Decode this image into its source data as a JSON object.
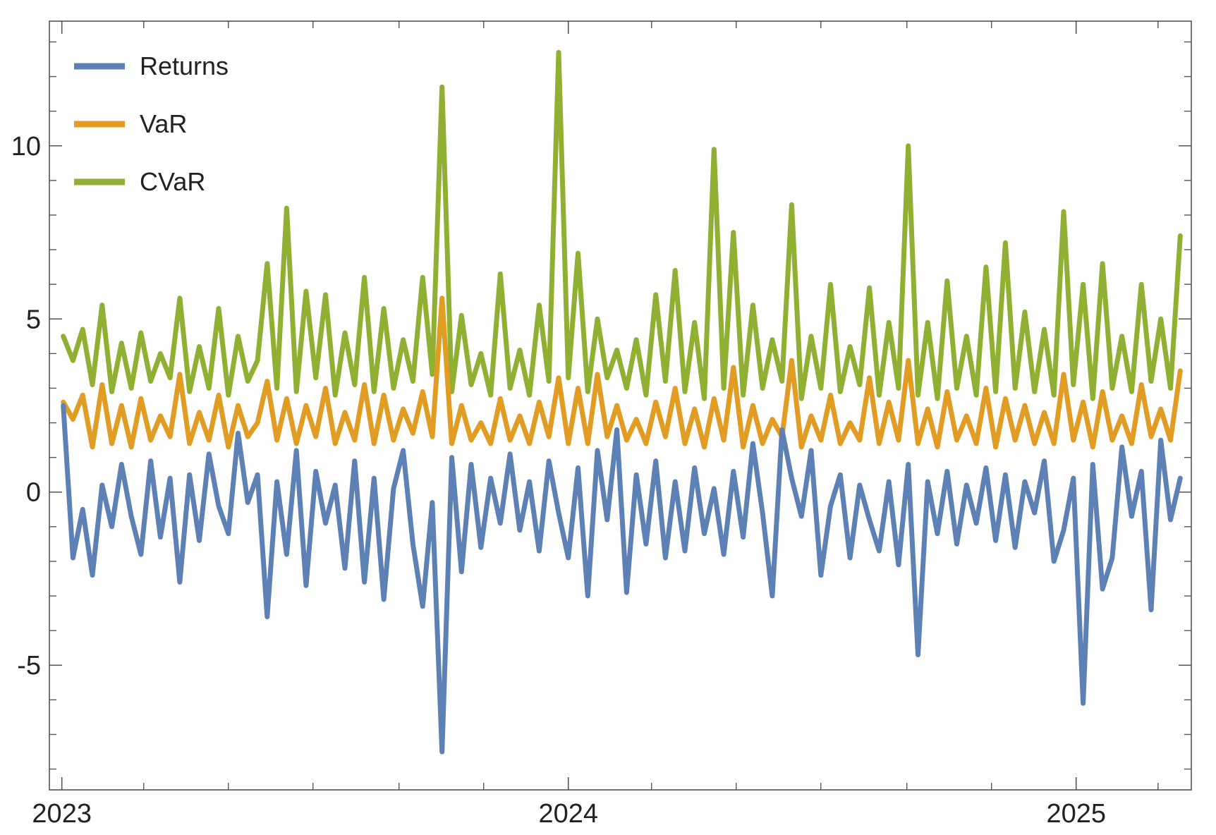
{
  "chart_data": {
    "type": "line",
    "title": "",
    "xlabel": "",
    "ylabel": "",
    "xlim": [
      "2022-12-23",
      "2025-03-25"
    ],
    "ylim": [
      -8.6,
      13.6
    ],
    "x_ticks": [
      {
        "value": "2023-01-01",
        "label": "2023"
      },
      {
        "value": "2024-01-01",
        "label": "2024"
      },
      {
        "value": "2025-01-01",
        "label": "2025"
      }
    ],
    "x_minor_ticks": [
      "2023-03-01",
      "2023-05-01",
      "2023-07-01",
      "2023-09-01",
      "2023-11-01",
      "2024-03-01",
      "2024-05-01",
      "2024-07-01",
      "2024-09-01",
      "2024-11-01",
      "2025-03-01"
    ],
    "y_ticks": [
      {
        "value": -5,
        "label": "-5"
      },
      {
        "value": 0,
        "label": "0"
      },
      {
        "value": 5,
        "label": "5"
      },
      {
        "value": 10,
        "label": "10"
      }
    ],
    "grid": false,
    "legend_position": "top-left",
    "series": [
      {
        "name": "Returns",
        "color": "#5e81b5",
        "x": [
          "2023-01-02",
          "2023-01-09",
          "2023-01-16",
          "2023-01-23",
          "2023-01-30",
          "2023-02-06",
          "2023-02-13",
          "2023-02-20",
          "2023-02-27",
          "2023-03-06",
          "2023-03-13",
          "2023-03-20",
          "2023-03-27",
          "2023-04-03",
          "2023-04-10",
          "2023-04-17",
          "2023-04-24",
          "2023-05-01",
          "2023-05-08",
          "2023-05-15",
          "2023-05-22",
          "2023-05-29",
          "2023-06-05",
          "2023-06-12",
          "2023-06-19",
          "2023-06-26",
          "2023-07-03",
          "2023-07-10",
          "2023-07-17",
          "2023-07-24",
          "2023-07-31",
          "2023-08-07",
          "2023-08-14",
          "2023-08-21",
          "2023-08-28",
          "2023-09-04",
          "2023-09-11",
          "2023-09-18",
          "2023-09-25",
          "2023-10-02",
          "2023-10-09",
          "2023-10-16",
          "2023-10-23",
          "2023-10-30",
          "2023-11-06",
          "2023-11-13",
          "2023-11-20",
          "2023-11-27",
          "2023-12-04",
          "2023-12-11",
          "2023-12-18",
          "2023-12-25",
          "2024-01-01",
          "2024-01-08",
          "2024-01-15",
          "2024-01-22",
          "2024-01-29",
          "2024-02-05",
          "2024-02-12",
          "2024-02-19",
          "2024-02-26",
          "2024-03-04",
          "2024-03-11",
          "2024-03-18",
          "2024-03-25",
          "2024-04-01",
          "2024-04-08",
          "2024-04-15",
          "2024-04-22",
          "2024-04-29",
          "2024-05-06",
          "2024-05-13",
          "2024-05-20",
          "2024-05-27",
          "2024-06-03",
          "2024-06-10",
          "2024-06-17",
          "2024-06-24",
          "2024-07-01",
          "2024-07-08",
          "2024-07-15",
          "2024-07-22",
          "2024-07-29",
          "2024-08-05",
          "2024-08-12",
          "2024-08-19",
          "2024-08-26",
          "2024-09-02",
          "2024-09-09",
          "2024-09-16",
          "2024-09-23",
          "2024-09-30",
          "2024-10-07",
          "2024-10-14",
          "2024-10-21",
          "2024-10-28",
          "2024-11-04",
          "2024-11-11",
          "2024-11-18",
          "2024-11-25",
          "2024-12-02",
          "2024-12-09",
          "2024-12-16",
          "2024-12-23",
          "2024-12-30",
          "2025-01-06",
          "2025-01-13",
          "2025-01-20",
          "2025-01-27",
          "2025-02-03",
          "2025-02-10",
          "2025-02-17",
          "2025-02-24",
          "2025-03-03",
          "2025-03-10",
          "2025-03-17"
        ],
        "y": [
          2.5,
          -1.9,
          -0.5,
          -2.4,
          0.2,
          -1.0,
          0.8,
          -0.7,
          -1.8,
          0.9,
          -1.3,
          0.4,
          -2.6,
          0.5,
          -1.4,
          1.1,
          -0.4,
          -1.2,
          1.7,
          -0.3,
          0.5,
          -3.6,
          0.3,
          -1.8,
          1.2,
          -2.7,
          0.6,
          -0.9,
          0.2,
          -2.2,
          0.9,
          -2.6,
          0.4,
          -3.1,
          0.1,
          1.2,
          -1.5,
          -3.3,
          -0.3,
          -7.5,
          1.0,
          -2.3,
          0.8,
          -1.6,
          0.4,
          -0.9,
          1.1,
          -1.1,
          0.3,
          -1.7,
          0.9,
          -0.6,
          -1.9,
          0.7,
          -3.0,
          1.2,
          -0.8,
          1.8,
          -2.9,
          0.5,
          -1.5,
          0.9,
          -1.9,
          0.3,
          -1.7,
          0.7,
          -1.2,
          0.1,
          -1.8,
          0.6,
          -1.3,
          1.4,
          -0.6,
          -3.0,
          1.8,
          0.4,
          -0.7,
          1.2,
          -2.4,
          -0.4,
          0.5,
          -1.9,
          0.2,
          -0.8,
          -1.7,
          0.3,
          -2.1,
          0.8,
          -4.7,
          0.3,
          -1.2,
          0.6,
          -1.5,
          0.2,
          -0.9,
          0.7,
          -1.4,
          0.5,
          -1.6,
          0.3,
          -0.6,
          0.9,
          -2.0,
          -1.1,
          0.4,
          -6.1,
          0.8,
          -2.8,
          -1.9,
          1.3,
          -0.7,
          0.6,
          -3.4,
          1.5,
          -0.8,
          0.4
        ]
      },
      {
        "name": "VaR",
        "color": "#e19c24",
        "x": [
          "2023-01-02",
          "2023-01-09",
          "2023-01-16",
          "2023-01-23",
          "2023-01-30",
          "2023-02-06",
          "2023-02-13",
          "2023-02-20",
          "2023-02-27",
          "2023-03-06",
          "2023-03-13",
          "2023-03-20",
          "2023-03-27",
          "2023-04-03",
          "2023-04-10",
          "2023-04-17",
          "2023-04-24",
          "2023-05-01",
          "2023-05-08",
          "2023-05-15",
          "2023-05-22",
          "2023-05-29",
          "2023-06-05",
          "2023-06-12",
          "2023-06-19",
          "2023-06-26",
          "2023-07-03",
          "2023-07-10",
          "2023-07-17",
          "2023-07-24",
          "2023-07-31",
          "2023-08-07",
          "2023-08-14",
          "2023-08-21",
          "2023-08-28",
          "2023-09-04",
          "2023-09-11",
          "2023-09-18",
          "2023-09-25",
          "2023-10-02",
          "2023-10-09",
          "2023-10-16",
          "2023-10-23",
          "2023-10-30",
          "2023-11-06",
          "2023-11-13",
          "2023-11-20",
          "2023-11-27",
          "2023-12-04",
          "2023-12-11",
          "2023-12-18",
          "2023-12-25",
          "2024-01-01",
          "2024-01-08",
          "2024-01-15",
          "2024-01-22",
          "2024-01-29",
          "2024-02-05",
          "2024-02-12",
          "2024-02-19",
          "2024-02-26",
          "2024-03-04",
          "2024-03-11",
          "2024-03-18",
          "2024-03-25",
          "2024-04-01",
          "2024-04-08",
          "2024-04-15",
          "2024-04-22",
          "2024-04-29",
          "2024-05-06",
          "2024-05-13",
          "2024-05-20",
          "2024-05-27",
          "2024-06-03",
          "2024-06-10",
          "2024-06-17",
          "2024-06-24",
          "2024-07-01",
          "2024-07-08",
          "2024-07-15",
          "2024-07-22",
          "2024-07-29",
          "2024-08-05",
          "2024-08-12",
          "2024-08-19",
          "2024-08-26",
          "2024-09-02",
          "2024-09-09",
          "2024-09-16",
          "2024-09-23",
          "2024-09-30",
          "2024-10-07",
          "2024-10-14",
          "2024-10-21",
          "2024-10-28",
          "2024-11-04",
          "2024-11-11",
          "2024-11-18",
          "2024-11-25",
          "2024-12-02",
          "2024-12-09",
          "2024-12-16",
          "2024-12-23",
          "2024-12-30",
          "2025-01-06",
          "2025-01-13",
          "2025-01-20",
          "2025-01-27",
          "2025-02-03",
          "2025-02-10",
          "2025-02-17",
          "2025-02-24",
          "2025-03-03",
          "2025-03-10",
          "2025-03-17"
        ],
        "y": [
          2.6,
          2.1,
          2.8,
          1.3,
          3.1,
          1.4,
          2.5,
          1.3,
          2.7,
          1.5,
          2.2,
          1.6,
          3.4,
          1.4,
          2.3,
          1.5,
          2.8,
          1.3,
          2.5,
          1.6,
          2.0,
          3.2,
          1.5,
          2.7,
          1.4,
          2.5,
          1.6,
          3.0,
          1.4,
          2.3,
          1.5,
          3.1,
          1.4,
          2.8,
          1.5,
          2.4,
          1.7,
          2.9,
          1.6,
          5.6,
          1.4,
          2.5,
          1.5,
          2.0,
          1.4,
          2.7,
          1.5,
          2.2,
          1.4,
          2.6,
          1.6,
          3.3,
          1.4,
          3.0,
          1.4,
          3.4,
          1.6,
          2.5,
          1.5,
          2.1,
          1.4,
          2.6,
          1.6,
          3.0,
          1.4,
          2.4,
          1.3,
          2.7,
          1.5,
          3.6,
          1.3,
          2.5,
          1.4,
          2.1,
          1.6,
          3.8,
          1.3,
          2.2,
          1.5,
          2.8,
          1.4,
          2.0,
          1.5,
          3.3,
          1.4,
          2.6,
          1.5,
          3.8,
          1.4,
          2.4,
          1.3,
          2.9,
          1.5,
          2.2,
          1.4,
          3.0,
          1.3,
          2.7,
          1.5,
          2.5,
          1.4,
          2.3,
          1.4,
          3.4,
          1.5,
          2.6,
          1.3,
          2.9,
          1.5,
          2.2,
          1.4,
          3.1,
          1.6,
          2.4,
          1.5,
          3.5
        ]
      },
      {
        "name": "CVaR",
        "color": "#8fb032",
        "x": [
          "2023-01-02",
          "2023-01-09",
          "2023-01-16",
          "2023-01-23",
          "2023-01-30",
          "2023-02-06",
          "2023-02-13",
          "2023-02-20",
          "2023-02-27",
          "2023-03-06",
          "2023-03-13",
          "2023-03-20",
          "2023-03-27",
          "2023-04-03",
          "2023-04-10",
          "2023-04-17",
          "2023-04-24",
          "2023-05-01",
          "2023-05-08",
          "2023-05-15",
          "2023-05-22",
          "2023-05-29",
          "2023-06-05",
          "2023-06-12",
          "2023-06-19",
          "2023-06-26",
          "2023-07-03",
          "2023-07-10",
          "2023-07-17",
          "2023-07-24",
          "2023-07-31",
          "2023-08-07",
          "2023-08-14",
          "2023-08-21",
          "2023-08-28",
          "2023-09-04",
          "2023-09-11",
          "2023-09-18",
          "2023-09-25",
          "2023-10-02",
          "2023-10-09",
          "2023-10-16",
          "2023-10-23",
          "2023-10-30",
          "2023-11-06",
          "2023-11-13",
          "2023-11-20",
          "2023-11-27",
          "2023-12-04",
          "2023-12-11",
          "2023-12-18",
          "2023-12-25",
          "2024-01-01",
          "2024-01-08",
          "2024-01-15",
          "2024-01-22",
          "2024-01-29",
          "2024-02-05",
          "2024-02-12",
          "2024-02-19",
          "2024-02-26",
          "2024-03-04",
          "2024-03-11",
          "2024-03-18",
          "2024-03-25",
          "2024-04-01",
          "2024-04-08",
          "2024-04-15",
          "2024-04-22",
          "2024-04-29",
          "2024-05-06",
          "2024-05-13",
          "2024-05-20",
          "2024-05-27",
          "2024-06-03",
          "2024-06-10",
          "2024-06-17",
          "2024-06-24",
          "2024-07-01",
          "2024-07-08",
          "2024-07-15",
          "2024-07-22",
          "2024-07-29",
          "2024-08-05",
          "2024-08-12",
          "2024-08-19",
          "2024-08-26",
          "2024-09-02",
          "2024-09-09",
          "2024-09-16",
          "2024-09-23",
          "2024-09-30",
          "2024-10-07",
          "2024-10-14",
          "2024-10-21",
          "2024-10-28",
          "2024-11-04",
          "2024-11-11",
          "2024-11-18",
          "2024-11-25",
          "2024-12-02",
          "2024-12-09",
          "2024-12-16",
          "2024-12-23",
          "2024-12-30",
          "2025-01-06",
          "2025-01-13",
          "2025-01-20",
          "2025-01-27",
          "2025-02-03",
          "2025-02-10",
          "2025-02-17",
          "2025-02-24",
          "2025-03-03",
          "2025-03-10",
          "2025-03-17"
        ],
        "y": [
          4.5,
          3.8,
          4.7,
          3.1,
          5.4,
          2.9,
          4.3,
          3.0,
          4.6,
          3.2,
          4.0,
          3.3,
          5.6,
          2.9,
          4.2,
          3.0,
          5.3,
          2.8,
          4.5,
          3.2,
          3.8,
          6.6,
          3.0,
          8.2,
          2.9,
          5.8,
          3.3,
          5.7,
          2.8,
          4.6,
          3.1,
          6.2,
          2.9,
          5.3,
          3.0,
          4.4,
          3.2,
          6.2,
          3.4,
          11.7,
          2.9,
          5.1,
          3.1,
          4.0,
          2.8,
          6.3,
          3.0,
          4.1,
          2.8,
          5.4,
          3.2,
          12.7,
          3.3,
          6.9,
          2.9,
          5.0,
          3.3,
          4.1,
          3.0,
          4.4,
          2.8,
          5.7,
          3.2,
          6.4,
          2.9,
          4.9,
          2.7,
          9.9,
          3.0,
          7.5,
          2.8,
          5.4,
          3.0,
          4.4,
          3.2,
          8.3,
          2.7,
          4.5,
          3.0,
          6.0,
          2.9,
          4.2,
          3.1,
          5.9,
          2.8,
          4.9,
          3.0,
          10.0,
          2.8,
          4.9,
          2.7,
          6.1,
          3.0,
          4.5,
          2.8,
          6.5,
          2.9,
          7.2,
          3.0,
          5.2,
          2.9,
          4.7,
          2.8,
          8.1,
          3.1,
          6.0,
          2.7,
          6.6,
          3.0,
          4.5,
          2.9,
          6.0,
          3.2,
          5.0,
          3.0,
          7.4
        ]
      }
    ]
  }
}
